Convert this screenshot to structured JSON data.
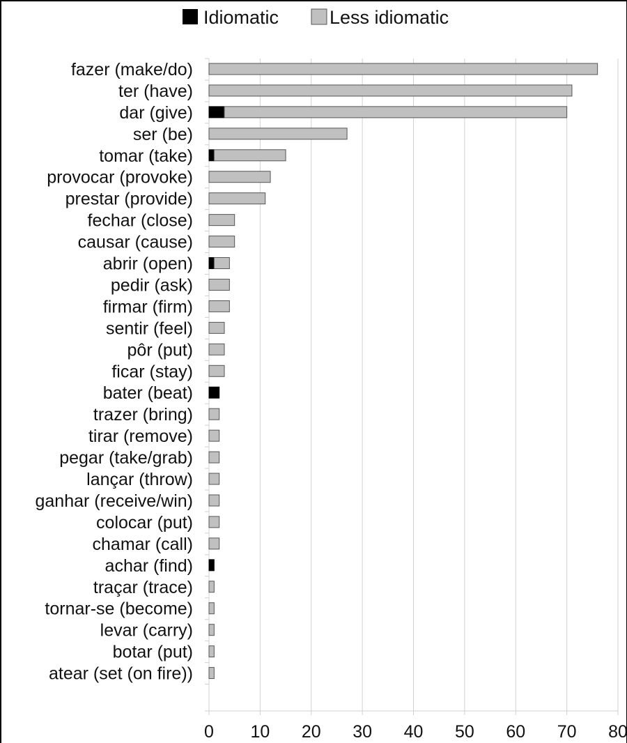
{
  "chart_data": {
    "type": "bar",
    "orientation": "horizontal",
    "stacked": true,
    "legend_position": "top",
    "grid": true,
    "xlim": [
      0,
      80
    ],
    "x_ticks": [
      "0",
      "10",
      "20",
      "30",
      "40",
      "50",
      "60",
      "70",
      "80"
    ],
    "categories": [
      "fazer (make/do)",
      "ter (have)",
      "dar (give)",
      "ser (be)",
      "tomar (take)",
      "provocar (provoke)",
      "prestar (provide)",
      "fechar (close)",
      "causar (cause)",
      "abrir (open)",
      "pedir (ask)",
      "firmar (firm)",
      "sentir (feel)",
      "pôr (put)",
      "ficar (stay)",
      "bater (beat)",
      "trazer (bring)",
      "tirar (remove)",
      "pegar (take/grab)",
      "lançar (throw)",
      "ganhar (receive/win)",
      "colocar (put)",
      "chamar (call)",
      "achar (find)",
      "traçar (trace)",
      "tornar-se (become)",
      "levar (carry)",
      "botar (put)",
      "atear (set (on fire))"
    ],
    "series": [
      {
        "name": "Idiomatic",
        "color": "#000000",
        "values": [
          0,
          0,
          3,
          0,
          1,
          0,
          0,
          0,
          0,
          1,
          0,
          0,
          0,
          0,
          0,
          2,
          0,
          0,
          0,
          0,
          0,
          0,
          0,
          1,
          0,
          0,
          0,
          0,
          0
        ]
      },
      {
        "name": "Less idiomatic",
        "color": "#c0c0c0",
        "values": [
          76,
          71,
          67,
          27,
          14,
          12,
          11,
          5,
          5,
          3,
          4,
          4,
          3,
          3,
          3,
          0,
          2,
          2,
          2,
          2,
          2,
          2,
          2,
          0,
          1,
          1,
          1,
          1,
          1
        ]
      }
    ]
  }
}
